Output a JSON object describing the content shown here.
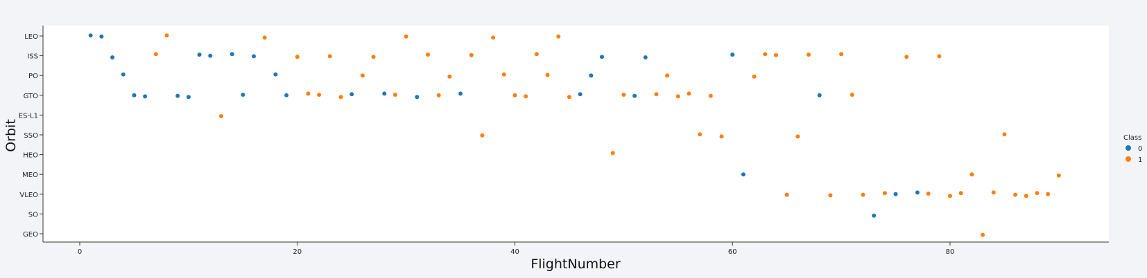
{
  "colors": {
    "class_0": "#1f77b4",
    "class_1": "#ff7f0e",
    "background": "#f3f4f7",
    "plot": "#ffffff"
  },
  "chart_data": {
    "type": "scatter",
    "title": "",
    "xlabel": "FlightNumber",
    "ylabel": "Orbit",
    "xlim": [
      -5,
      93
    ],
    "x_ticks": [
      "0",
      "20",
      "40",
      "60",
      "80"
    ],
    "categories": [
      "LEO",
      "ISS",
      "PO",
      "GTO",
      "ES-L1",
      "SSO",
      "HEO",
      "MEO",
      "VLEO",
      "SO",
      "GEO"
    ],
    "legend": {
      "title": "Class",
      "entries": [
        "0",
        "1"
      ],
      "position": "right"
    },
    "grid": false,
    "series": [
      {
        "name": "0",
        "points": [
          {
            "x": 1,
            "y": "LEO"
          },
          {
            "x": 2,
            "y": "LEO"
          },
          {
            "x": 3,
            "y": "ISS"
          },
          {
            "x": 4,
            "y": "PO"
          },
          {
            "x": 5,
            "y": "GTO"
          },
          {
            "x": 6,
            "y": "GTO"
          },
          {
            "x": 9,
            "y": "GTO"
          },
          {
            "x": 10,
            "y": "GTO"
          },
          {
            "x": 11,
            "y": "ISS"
          },
          {
            "x": 12,
            "y": "ISS"
          },
          {
            "x": 14,
            "y": "ISS"
          },
          {
            "x": 15,
            "y": "GTO"
          },
          {
            "x": 16,
            "y": "ISS"
          },
          {
            "x": 18,
            "y": "PO"
          },
          {
            "x": 19,
            "y": "GTO"
          },
          {
            "x": 25,
            "y": "GTO"
          },
          {
            "x": 28,
            "y": "GTO"
          },
          {
            "x": 31,
            "y": "GTO"
          },
          {
            "x": 35,
            "y": "GTO"
          },
          {
            "x": 46,
            "y": "GTO"
          },
          {
            "x": 47,
            "y": "PO"
          },
          {
            "x": 48,
            "y": "ISS"
          },
          {
            "x": 51,
            "y": "GTO"
          },
          {
            "x": 52,
            "y": "ISS"
          },
          {
            "x": 60,
            "y": "ISS"
          },
          {
            "x": 61,
            "y": "MEO"
          },
          {
            "x": 68,
            "y": "GTO"
          },
          {
            "x": 73,
            "y": "SO"
          },
          {
            "x": 75,
            "y": "VLEO"
          },
          {
            "x": 77,
            "y": "VLEO"
          }
        ]
      },
      {
        "name": "1",
        "points": [
          {
            "x": 7,
            "y": "ISS"
          },
          {
            "x": 8,
            "y": "LEO"
          },
          {
            "x": 13,
            "y": "ES-L1"
          },
          {
            "x": 17,
            "y": "LEO"
          },
          {
            "x": 20,
            "y": "ISS"
          },
          {
            "x": 21,
            "y": "GTO"
          },
          {
            "x": 22,
            "y": "GTO"
          },
          {
            "x": 23,
            "y": "ISS"
          },
          {
            "x": 24,
            "y": "GTO"
          },
          {
            "x": 26,
            "y": "PO"
          },
          {
            "x": 27,
            "y": "ISS"
          },
          {
            "x": 29,
            "y": "GTO"
          },
          {
            "x": 30,
            "y": "LEO"
          },
          {
            "x": 32,
            "y": "ISS"
          },
          {
            "x": 33,
            "y": "GTO"
          },
          {
            "x": 34,
            "y": "PO"
          },
          {
            "x": 36,
            "y": "ISS"
          },
          {
            "x": 37,
            "y": "SSO"
          },
          {
            "x": 38,
            "y": "LEO"
          },
          {
            "x": 39,
            "y": "PO"
          },
          {
            "x": 40,
            "y": "GTO"
          },
          {
            "x": 41,
            "y": "GTO"
          },
          {
            "x": 42,
            "y": "ISS"
          },
          {
            "x": 43,
            "y": "PO"
          },
          {
            "x": 44,
            "y": "LEO"
          },
          {
            "x": 45,
            "y": "GTO"
          },
          {
            "x": 49,
            "y": "HEO"
          },
          {
            "x": 50,
            "y": "GTO"
          },
          {
            "x": 53,
            "y": "GTO"
          },
          {
            "x": 54,
            "y": "PO"
          },
          {
            "x": 55,
            "y": "GTO"
          },
          {
            "x": 56,
            "y": "GTO"
          },
          {
            "x": 57,
            "y": "SSO"
          },
          {
            "x": 58,
            "y": "GTO"
          },
          {
            "x": 59,
            "y": "SSO"
          },
          {
            "x": 62,
            "y": "PO"
          },
          {
            "x": 63,
            "y": "ISS"
          },
          {
            "x": 64,
            "y": "ISS"
          },
          {
            "x": 65,
            "y": "VLEO"
          },
          {
            "x": 66,
            "y": "SSO"
          },
          {
            "x": 67,
            "y": "ISS"
          },
          {
            "x": 69,
            "y": "VLEO"
          },
          {
            "x": 70,
            "y": "ISS"
          },
          {
            "x": 71,
            "y": "GTO"
          },
          {
            "x": 72,
            "y": "VLEO"
          },
          {
            "x": 74,
            "y": "VLEO"
          },
          {
            "x": 76,
            "y": "ISS"
          },
          {
            "x": 78,
            "y": "VLEO"
          },
          {
            "x": 79,
            "y": "ISS"
          },
          {
            "x": 80,
            "y": "VLEO"
          },
          {
            "x": 81,
            "y": "VLEO"
          },
          {
            "x": 82,
            "y": "MEO"
          },
          {
            "x": 83,
            "y": "GEO"
          },
          {
            "x": 84,
            "y": "VLEO"
          },
          {
            "x": 85,
            "y": "SSO"
          },
          {
            "x": 86,
            "y": "VLEO"
          },
          {
            "x": 87,
            "y": "VLEO"
          },
          {
            "x": 88,
            "y": "VLEO"
          },
          {
            "x": 89,
            "y": "VLEO"
          },
          {
            "x": 90,
            "y": "MEO"
          }
        ]
      }
    ]
  }
}
